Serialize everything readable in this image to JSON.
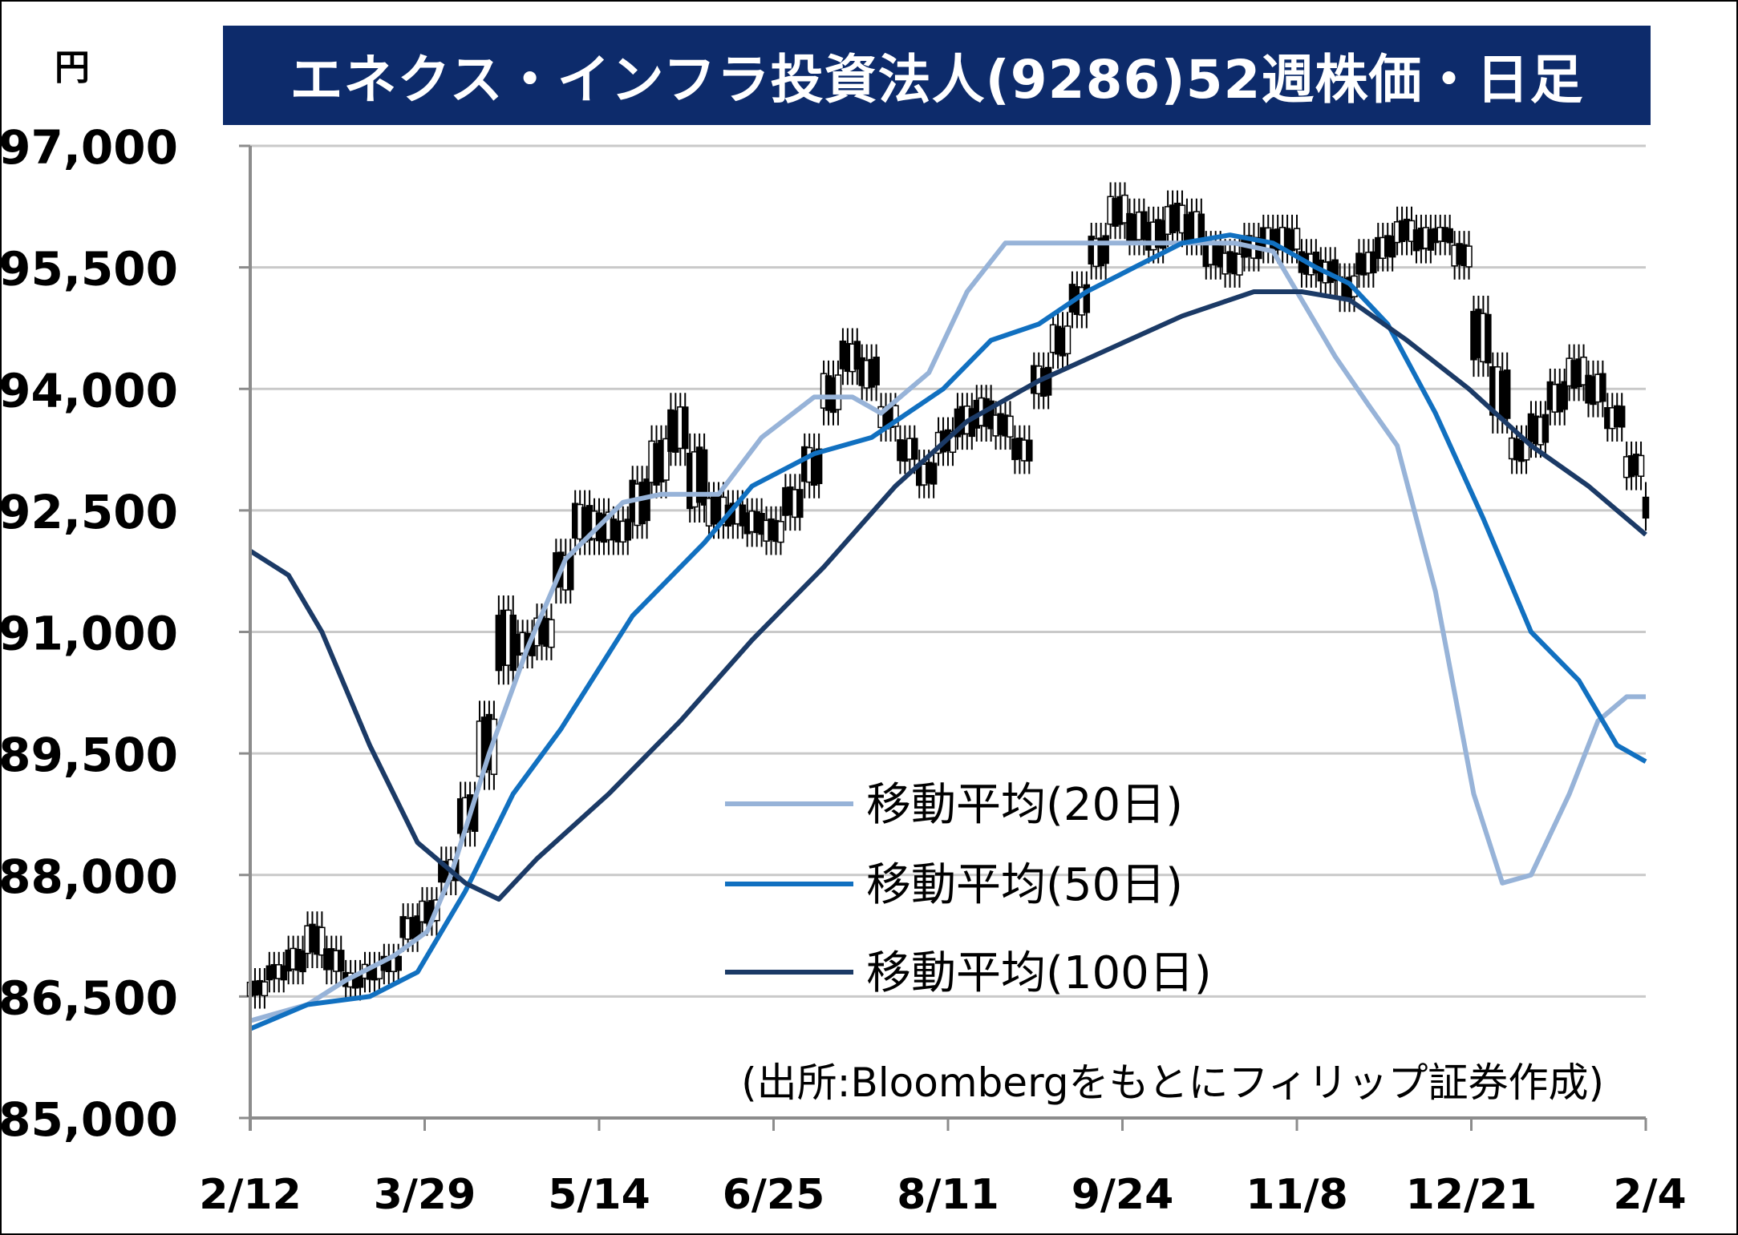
{
  "chart_data": {
    "type": "candlestick",
    "title": "エネクス・インフラ投資法人(9286)52週株価・日足",
    "ylabel": "円",
    "source": "(出所:Bloombergをもとにフィリップ証券作成)",
    "ylim": [
      85000,
      97000
    ],
    "yticks": [
      "85,000",
      "86,500",
      "88,000",
      "89,500",
      "91,000",
      "92,500",
      "94,000",
      "95,500",
      "97,000"
    ],
    "ytick_values": [
      85000,
      86500,
      88000,
      89500,
      91000,
      92500,
      94000,
      95500,
      97000
    ],
    "xticks": [
      "2/12",
      "3/29",
      "5/14",
      "6/25",
      "8/11",
      "9/24",
      "11/8",
      "12/21",
      "2/4"
    ],
    "grid": true,
    "legend_position": "center",
    "series": [
      {
        "name": "移動平均(20日)",
        "color": "#97b3d8",
        "points": [
          [
            0,
            86200
          ],
          [
            12,
            86400
          ],
          [
            20,
            86700
          ],
          [
            30,
            87000
          ],
          [
            37,
            87300
          ],
          [
            42,
            88000
          ],
          [
            50,
            89500
          ],
          [
            58,
            90800
          ],
          [
            66,
            91900
          ],
          [
            78,
            92600
          ],
          [
            86,
            92700
          ],
          [
            98,
            92700
          ],
          [
            107,
            93400
          ],
          [
            118,
            93900
          ],
          [
            126,
            93900
          ],
          [
            132,
            93700
          ],
          [
            142,
            94200
          ],
          [
            150,
            95200
          ],
          [
            158,
            95800
          ],
          [
            166,
            95800
          ],
          [
            176,
            95800
          ],
          [
            190,
            95800
          ],
          [
            206,
            95800
          ],
          [
            214,
            95700
          ],
          [
            220,
            95100
          ],
          [
            227,
            94400
          ],
          [
            234,
            93800
          ],
          [
            240,
            93300
          ],
          [
            248,
            91500
          ],
          [
            256,
            89000
          ],
          [
            262,
            87900
          ],
          [
            268,
            88000
          ],
          [
            276,
            89000
          ],
          [
            282,
            89900
          ],
          [
            288,
            90200
          ],
          [
            292,
            90200
          ]
        ]
      },
      {
        "name": "移動平均(50日)",
        "color": "#1170c0",
        "points": [
          [
            0,
            86100
          ],
          [
            12,
            86400
          ],
          [
            25,
            86500
          ],
          [
            35,
            86800
          ],
          [
            45,
            87800
          ],
          [
            55,
            89000
          ],
          [
            65,
            89800
          ],
          [
            80,
            91200
          ],
          [
            95,
            92100
          ],
          [
            105,
            92800
          ],
          [
            118,
            93200
          ],
          [
            130,
            93400
          ],
          [
            145,
            94000
          ],
          [
            155,
            94600
          ],
          [
            165,
            94800
          ],
          [
            175,
            95200
          ],
          [
            185,
            95500
          ],
          [
            195,
            95800
          ],
          [
            205,
            95900
          ],
          [
            214,
            95800
          ],
          [
            223,
            95500
          ],
          [
            230,
            95300
          ],
          [
            238,
            94800
          ],
          [
            248,
            93700
          ],
          [
            258,
            92400
          ],
          [
            268,
            91000
          ],
          [
            278,
            90400
          ],
          [
            286,
            89600
          ],
          [
            292,
            89400
          ]
        ]
      },
      {
        "name": "移動平均(100日)",
        "color": "#1b3a66",
        "points": [
          [
            0,
            92000
          ],
          [
            8,
            91700
          ],
          [
            15,
            91000
          ],
          [
            25,
            89600
          ],
          [
            35,
            88400
          ],
          [
            45,
            87900
          ],
          [
            52,
            87700
          ],
          [
            60,
            88200
          ],
          [
            75,
            89000
          ],
          [
            90,
            89900
          ],
          [
            105,
            90900
          ],
          [
            120,
            91800
          ],
          [
            135,
            92800
          ],
          [
            150,
            93600
          ],
          [
            165,
            94100
          ],
          [
            180,
            94500
          ],
          [
            195,
            94900
          ],
          [
            210,
            95200
          ],
          [
            220,
            95200
          ],
          [
            230,
            95100
          ],
          [
            242,
            94600
          ],
          [
            255,
            94000
          ],
          [
            268,
            93300
          ],
          [
            280,
            92800
          ],
          [
            292,
            92200
          ]
        ]
      }
    ],
    "candles_approx": [
      [
        0,
        86700,
        86500
      ],
      [
        4,
        86900,
        86700
      ],
      [
        8,
        87100,
        86800
      ],
      [
        12,
        87400,
        87000
      ],
      [
        16,
        87100,
        86800
      ],
      [
        20,
        86800,
        86600
      ],
      [
        24,
        86900,
        86700
      ],
      [
        28,
        87000,
        86800
      ],
      [
        32,
        87500,
        87200
      ],
      [
        36,
        87700,
        87400
      ],
      [
        40,
        88200,
        87900
      ],
      [
        44,
        89000,
        88500
      ],
      [
        48,
        90000,
        89200
      ],
      [
        52,
        91300,
        90500
      ],
      [
        56,
        91000,
        90700
      ],
      [
        60,
        91200,
        90800
      ],
      [
        64,
        92000,
        91500
      ],
      [
        68,
        92600,
        92100
      ],
      [
        72,
        92500,
        92100
      ],
      [
        76,
        92400,
        92100
      ],
      [
        80,
        92900,
        92300
      ],
      [
        84,
        93400,
        92800
      ],
      [
        88,
        93800,
        93200
      ],
      [
        92,
        93300,
        92500
      ],
      [
        96,
        92700,
        92300
      ],
      [
        100,
        92600,
        92300
      ],
      [
        104,
        92500,
        92200
      ],
      [
        108,
        92400,
        92100
      ],
      [
        112,
        92800,
        92400
      ],
      [
        116,
        93300,
        92800
      ],
      [
        120,
        94200,
        93700
      ],
      [
        124,
        94600,
        94200
      ],
      [
        128,
        94400,
        94000
      ],
      [
        132,
        93800,
        93500
      ],
      [
        136,
        93400,
        93100
      ],
      [
        140,
        93100,
        92800
      ],
      [
        144,
        93500,
        93200
      ],
      [
        148,
        93800,
        93400
      ],
      [
        152,
        93900,
        93500
      ],
      [
        156,
        93700,
        93400
      ],
      [
        160,
        93400,
        93100
      ],
      [
        164,
        94300,
        93900
      ],
      [
        168,
        94800,
        94400
      ],
      [
        172,
        95300,
        94900
      ],
      [
        176,
        95900,
        95500
      ],
      [
        180,
        96400,
        96000
      ],
      [
        184,
        96200,
        95800
      ],
      [
        188,
        96100,
        95700
      ],
      [
        192,
        96300,
        95900
      ],
      [
        196,
        96200,
        95800
      ],
      [
        200,
        95800,
        95500
      ],
      [
        204,
        95700,
        95400
      ],
      [
        208,
        95900,
        95600
      ],
      [
        212,
        96000,
        95700
      ],
      [
        216,
        96000,
        95700
      ],
      [
        220,
        95700,
        95400
      ],
      [
        224,
        95600,
        95300
      ],
      [
        228,
        95400,
        95100
      ],
      [
        232,
        95700,
        95400
      ],
      [
        236,
        95900,
        95600
      ],
      [
        240,
        96100,
        95800
      ],
      [
        244,
        96000,
        95700
      ],
      [
        248,
        96000,
        95800
      ],
      [
        252,
        95800,
        95500
      ],
      [
        256,
        95000,
        94300
      ],
      [
        260,
        94300,
        93600
      ],
      [
        264,
        93400,
        93100
      ],
      [
        268,
        93700,
        93300
      ],
      [
        272,
        94100,
        93700
      ],
      [
        276,
        94400,
        94000
      ],
      [
        280,
        94200,
        93800
      ],
      [
        284,
        93800,
        93500
      ],
      [
        288,
        93200,
        92900
      ],
      [
        292,
        92700,
        92400
      ]
    ]
  }
}
